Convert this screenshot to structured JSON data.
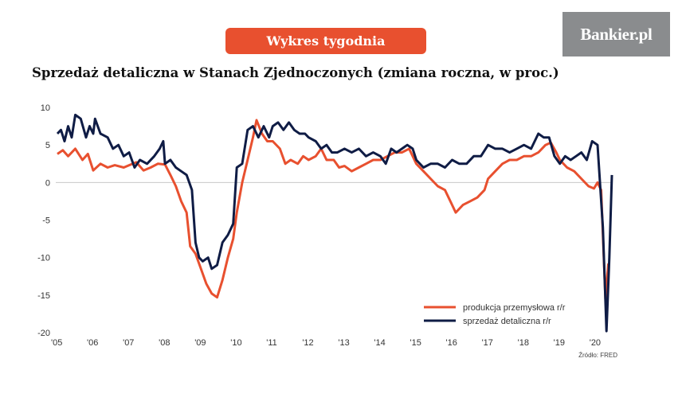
{
  "banner": {
    "label": "Wykres tygodnia"
  },
  "logo": {
    "text": "Bankier.pl"
  },
  "source": "Źródło: FRED",
  "colors": {
    "banner": "#e8502f",
    "logo_bg": "#8a8c8e",
    "industrial": "#e8502f",
    "retail": "#0f1c45"
  },
  "chart_data": {
    "type": "line",
    "title": "Sprzedaż detaliczna w Stanach Zjednoczonych (zmiana roczna, w proc.)",
    "xlabel": "",
    "ylabel": "",
    "xlim": [
      2005,
      2020.45
    ],
    "ylim": [
      -20,
      10
    ],
    "yticks": [
      10,
      5,
      0,
      -5,
      -10,
      -15,
      -20
    ],
    "xticks": [
      {
        "x": 2005,
        "label": "'05"
      },
      {
        "x": 2006,
        "label": "'06"
      },
      {
        "x": 2007,
        "label": "'07"
      },
      {
        "x": 2008,
        "label": "'08"
      },
      {
        "x": 2009,
        "label": "'09"
      },
      {
        "x": 2010,
        "label": "'10"
      },
      {
        "x": 2011,
        "label": "'11"
      },
      {
        "x": 2012,
        "label": "'12"
      },
      {
        "x": 2013,
        "label": "'13"
      },
      {
        "x": 2014,
        "label": "'14"
      },
      {
        "x": 2015,
        "label": "'15"
      },
      {
        "x": 2016,
        "label": "'16"
      },
      {
        "x": 2017,
        "label": "'17"
      },
      {
        "x": 2018,
        "label": "'18"
      },
      {
        "x": 2019,
        "label": "'19"
      },
      {
        "x": 2020,
        "label": "'20"
      }
    ],
    "grid": "zero-line",
    "legend_position": "bottom-right",
    "series": [
      {
        "name": "produkcja przemysłowa r/r",
        "color": "#e8502f",
        "points": [
          [
            2005.0,
            3.8
          ],
          [
            2005.15,
            4.3
          ],
          [
            2005.3,
            3.5
          ],
          [
            2005.5,
            4.5
          ],
          [
            2005.7,
            3.0
          ],
          [
            2005.85,
            3.8
          ],
          [
            2006.0,
            1.6
          ],
          [
            2006.2,
            2.5
          ],
          [
            2006.4,
            2.0
          ],
          [
            2006.6,
            2.3
          ],
          [
            2006.85,
            2.0
          ],
          [
            2007.0,
            2.3
          ],
          [
            2007.2,
            2.7
          ],
          [
            2007.4,
            1.6
          ],
          [
            2007.6,
            2.0
          ],
          [
            2007.8,
            2.5
          ],
          [
            2008.0,
            2.4
          ],
          [
            2008.15,
            1.0
          ],
          [
            2008.3,
            -0.5
          ],
          [
            2008.45,
            -2.5
          ],
          [
            2008.6,
            -4.0
          ],
          [
            2008.7,
            -8.5
          ],
          [
            2008.85,
            -9.5
          ],
          [
            2009.0,
            -11.5
          ],
          [
            2009.15,
            -13.5
          ],
          [
            2009.3,
            -14.8
          ],
          [
            2009.45,
            -15.3
          ],
          [
            2009.6,
            -13.0
          ],
          [
            2009.75,
            -10.0
          ],
          [
            2009.9,
            -7.5
          ],
          [
            2010.0,
            -4.0
          ],
          [
            2010.15,
            0.0
          ],
          [
            2010.3,
            3.0
          ],
          [
            2010.45,
            6.0
          ],
          [
            2010.55,
            8.3
          ],
          [
            2010.7,
            6.5
          ],
          [
            2010.85,
            5.5
          ],
          [
            2011.0,
            5.5
          ],
          [
            2011.2,
            4.5
          ],
          [
            2011.35,
            2.5
          ],
          [
            2011.5,
            3.0
          ],
          [
            2011.7,
            2.5
          ],
          [
            2011.85,
            3.5
          ],
          [
            2012.0,
            3.0
          ],
          [
            2012.2,
            3.5
          ],
          [
            2012.35,
            4.5
          ],
          [
            2012.5,
            3.0
          ],
          [
            2012.7,
            3.0
          ],
          [
            2012.85,
            2.0
          ],
          [
            2013.0,
            2.2
          ],
          [
            2013.2,
            1.5
          ],
          [
            2013.4,
            2.0
          ],
          [
            2013.6,
            2.5
          ],
          [
            2013.8,
            3.0
          ],
          [
            2014.0,
            3.0
          ],
          [
            2014.2,
            3.5
          ],
          [
            2014.4,
            4.0
          ],
          [
            2014.6,
            4.0
          ],
          [
            2014.8,
            4.5
          ],
          [
            2015.0,
            2.5
          ],
          [
            2015.2,
            1.5
          ],
          [
            2015.4,
            0.5
          ],
          [
            2015.6,
            -0.5
          ],
          [
            2015.8,
            -1.0
          ],
          [
            2016.0,
            -3.0
          ],
          [
            2016.1,
            -4.0
          ],
          [
            2016.3,
            -3.0
          ],
          [
            2016.5,
            -2.5
          ],
          [
            2016.7,
            -2.0
          ],
          [
            2016.9,
            -1.0
          ],
          [
            2017.0,
            0.5
          ],
          [
            2017.2,
            1.5
          ],
          [
            2017.4,
            2.5
          ],
          [
            2017.6,
            3.0
          ],
          [
            2017.8,
            3.0
          ],
          [
            2018.0,
            3.5
          ],
          [
            2018.2,
            3.5
          ],
          [
            2018.4,
            4.0
          ],
          [
            2018.6,
            5.0
          ],
          [
            2018.75,
            5.3
          ],
          [
            2018.9,
            4.0
          ],
          [
            2019.0,
            3.0
          ],
          [
            2019.2,
            2.0
          ],
          [
            2019.4,
            1.5
          ],
          [
            2019.6,
            0.5
          ],
          [
            2019.8,
            -0.5
          ],
          [
            2019.95,
            -0.8
          ],
          [
            2020.05,
            0.0
          ],
          [
            2020.15,
            -1.0
          ],
          [
            2020.27,
            -15.5
          ],
          [
            2020.35,
            -10.8
          ]
        ]
      },
      {
        "name": "sprzedaż detaliczna r/r",
        "color": "#0f1c45",
        "points": [
          [
            2005.0,
            6.5
          ],
          [
            2005.1,
            7.0
          ],
          [
            2005.2,
            5.5
          ],
          [
            2005.3,
            7.5
          ],
          [
            2005.4,
            6.0
          ],
          [
            2005.5,
            9.0
          ],
          [
            2005.65,
            8.5
          ],
          [
            2005.8,
            6.0
          ],
          [
            2005.9,
            7.5
          ],
          [
            2006.0,
            6.5
          ],
          [
            2006.05,
            8.5
          ],
          [
            2006.2,
            6.5
          ],
          [
            2006.4,
            6.0
          ],
          [
            2006.55,
            4.5
          ],
          [
            2006.7,
            5.0
          ],
          [
            2006.85,
            3.5
          ],
          [
            2007.0,
            4.0
          ],
          [
            2007.15,
            2.0
          ],
          [
            2007.3,
            3.0
          ],
          [
            2007.5,
            2.5
          ],
          [
            2007.7,
            3.5
          ],
          [
            2007.85,
            4.5
          ],
          [
            2007.95,
            5.5
          ],
          [
            2008.0,
            2.5
          ],
          [
            2008.15,
            3.0
          ],
          [
            2008.3,
            2.0
          ],
          [
            2008.45,
            1.5
          ],
          [
            2008.6,
            1.0
          ],
          [
            2008.75,
            -1.0
          ],
          [
            2008.85,
            -8.0
          ],
          [
            2008.95,
            -10.0
          ],
          [
            2009.05,
            -10.5
          ],
          [
            2009.2,
            -10.0
          ],
          [
            2009.3,
            -11.5
          ],
          [
            2009.45,
            -11.0
          ],
          [
            2009.6,
            -8.0
          ],
          [
            2009.75,
            -7.0
          ],
          [
            2009.9,
            -5.5
          ],
          [
            2010.0,
            2.0
          ],
          [
            2010.15,
            2.5
          ],
          [
            2010.3,
            7.0
          ],
          [
            2010.45,
            7.5
          ],
          [
            2010.6,
            6.0
          ],
          [
            2010.75,
            7.5
          ],
          [
            2010.9,
            6.0
          ],
          [
            2011.0,
            7.5
          ],
          [
            2011.15,
            8.0
          ],
          [
            2011.3,
            7.0
          ],
          [
            2011.45,
            8.0
          ],
          [
            2011.6,
            7.0
          ],
          [
            2011.75,
            6.5
          ],
          [
            2011.9,
            6.5
          ],
          [
            2012.0,
            6.0
          ],
          [
            2012.2,
            5.5
          ],
          [
            2012.35,
            4.5
          ],
          [
            2012.5,
            5.0
          ],
          [
            2012.65,
            4.0
          ],
          [
            2012.8,
            4.0
          ],
          [
            2013.0,
            4.5
          ],
          [
            2013.2,
            4.0
          ],
          [
            2013.4,
            4.5
          ],
          [
            2013.6,
            3.5
          ],
          [
            2013.8,
            4.0
          ],
          [
            2014.0,
            3.5
          ],
          [
            2014.15,
            2.5
          ],
          [
            2014.3,
            4.5
          ],
          [
            2014.45,
            4.0
          ],
          [
            2014.6,
            4.5
          ],
          [
            2014.75,
            5.0
          ],
          [
            2014.9,
            4.5
          ],
          [
            2015.0,
            3.0
          ],
          [
            2015.2,
            2.0
          ],
          [
            2015.4,
            2.5
          ],
          [
            2015.6,
            2.5
          ],
          [
            2015.8,
            2.0
          ],
          [
            2016.0,
            3.0
          ],
          [
            2016.2,
            2.5
          ],
          [
            2016.4,
            2.5
          ],
          [
            2016.6,
            3.5
          ],
          [
            2016.8,
            3.5
          ],
          [
            2017.0,
            5.0
          ],
          [
            2017.2,
            4.5
          ],
          [
            2017.4,
            4.5
          ],
          [
            2017.6,
            4.0
          ],
          [
            2017.8,
            4.5
          ],
          [
            2018.0,
            5.0
          ],
          [
            2018.2,
            4.5
          ],
          [
            2018.4,
            6.5
          ],
          [
            2018.55,
            6.0
          ],
          [
            2018.7,
            6.0
          ],
          [
            2018.85,
            3.5
          ],
          [
            2019.0,
            2.5
          ],
          [
            2019.15,
            3.5
          ],
          [
            2019.3,
            3.0
          ],
          [
            2019.45,
            3.5
          ],
          [
            2019.6,
            4.0
          ],
          [
            2019.75,
            3.0
          ],
          [
            2019.9,
            5.5
          ],
          [
            2020.05,
            5.0
          ],
          [
            2020.2,
            -6.0
          ],
          [
            2020.3,
            -19.8
          ],
          [
            2020.38,
            -10.0
          ],
          [
            2020.45,
            1.0
          ]
        ]
      }
    ]
  }
}
